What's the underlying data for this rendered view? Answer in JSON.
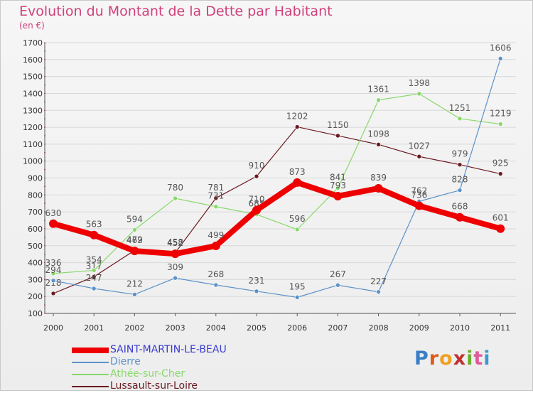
{
  "title": "Evolution du Montant de la Dette par Habitant",
  "subtitle": "(en €)",
  "logo": "Proxiti",
  "colors": {
    "title": "#d0407a",
    "grid": "#d8d8d8",
    "axis": "#555555"
  },
  "chart_data": {
    "type": "line",
    "categories": [
      "2000",
      "2001",
      "2002",
      "2003",
      "2004",
      "2005",
      "2006",
      "2007",
      "2008",
      "2009",
      "2010",
      "2011"
    ],
    "y_ticks": [
      100,
      200,
      300,
      400,
      500,
      600,
      700,
      800,
      900,
      1000,
      1100,
      1200,
      1300,
      1400,
      1500,
      1600,
      1700
    ],
    "ylim": [
      100,
      1700
    ],
    "grid": "horizontal",
    "legend_position": "bottom-left",
    "series": [
      {
        "name": "Lussault-sur-Loire",
        "color": "#6b1a22",
        "width": 1.2,
        "values": [
          218,
          317,
          472,
          458,
          781,
          910,
          1202,
          1150,
          1098,
          1027,
          979,
          925
        ]
      },
      {
        "name": "Athée-sur-Cher",
        "color": "#88d86a",
        "width": 1.2,
        "values": [
          336,
          354,
          594,
          780,
          731,
          685,
          596,
          841,
          1361,
          1398,
          1251,
          1219
        ]
      },
      {
        "name": "Dierre",
        "color": "#5b91c8",
        "width": 1.2,
        "values": [
          294,
          247,
          212,
          309,
          268,
          231,
          195,
          267,
          227,
          762,
          828,
          1606
        ]
      },
      {
        "name": "SAINT-MARTIN-LE-BEAU",
        "color": "#ee0000",
        "width": 8,
        "values": [
          630,
          563,
          469,
          452,
          499,
          710,
          873,
          793,
          839,
          736,
          668,
          601
        ]
      }
    ],
    "legend": [
      {
        "name": "SAINT-MARTIN-LE-BEAU",
        "color": "#ee0000",
        "width": 8
      },
      {
        "name": "Dierre",
        "color": "#5b91c8",
        "width": 1.5
      },
      {
        "name": "Athée-sur-Cher",
        "color": "#88d86a",
        "width": 1.5
      },
      {
        "name": "Lussault-sur-Loire",
        "color": "#6b1a22",
        "width": 1.5
      }
    ]
  }
}
